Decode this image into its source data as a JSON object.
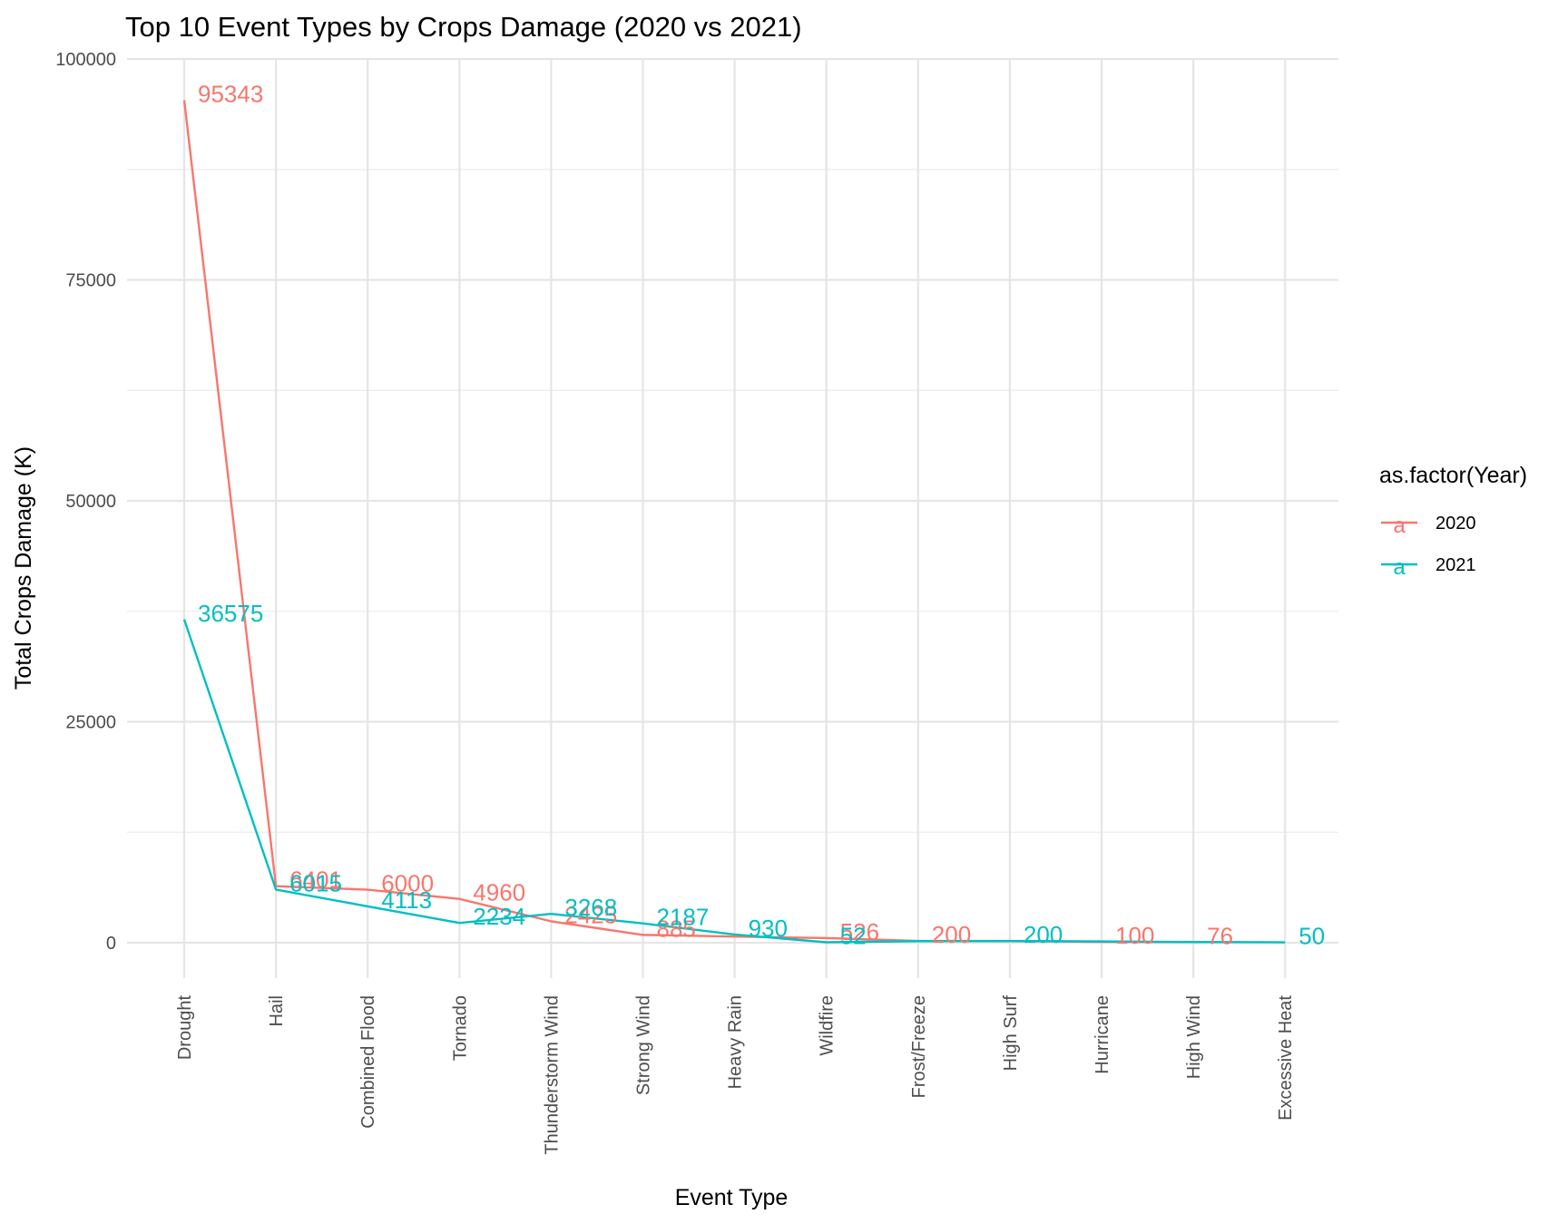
{
  "chart_data": {
    "type": "line",
    "title": "Top 10 Event Types by Crops Damage (2020 vs 2021)",
    "xlabel": "Event Type",
    "ylabel": "Total Crops Damage (K)",
    "categories": [
      "Drought",
      "Hail",
      "Combined Flood",
      "Tornado",
      "Thunderstorm Wind",
      "Strong Wind",
      "Heavy Rain",
      "Wildfire",
      "Frost/Freeze",
      "High Surf",
      "Hurricane",
      "High Wind",
      "Excessive Heat"
    ],
    "ylim": [
      0,
      100000
    ],
    "yticks": [
      0,
      25000,
      50000,
      75000,
      100000
    ],
    "ytick_labels": [
      "0",
      "25000",
      "50000",
      "75000",
      "100000"
    ],
    "grid": true,
    "legend": {
      "title": "as.factor(Year)",
      "position": "right",
      "key_glyph": "a"
    },
    "series": [
      {
        "name": "2020",
        "color": "#F8766D",
        "values": [
          95343,
          6401,
          6000,
          4960,
          2425,
          885,
          700,
          526,
          200,
          180,
          100,
          76,
          null
        ],
        "point_labels": [
          "95343",
          "6401",
          "6000",
          "4960",
          "2425",
          "885",
          "",
          "526",
          "200",
          "",
          "100",
          "76",
          ""
        ]
      },
      {
        "name": "2021",
        "color": "#00BFC4",
        "values": [
          36575,
          6015,
          4113,
          2234,
          3268,
          2187,
          930,
          52,
          180,
          200,
          150,
          76,
          50
        ],
        "point_labels": [
          "36575",
          "6015",
          "4113",
          "2234",
          "3268",
          "2187",
          "930",
          "52",
          "",
          "200",
          "",
          "",
          "50"
        ]
      }
    ]
  }
}
